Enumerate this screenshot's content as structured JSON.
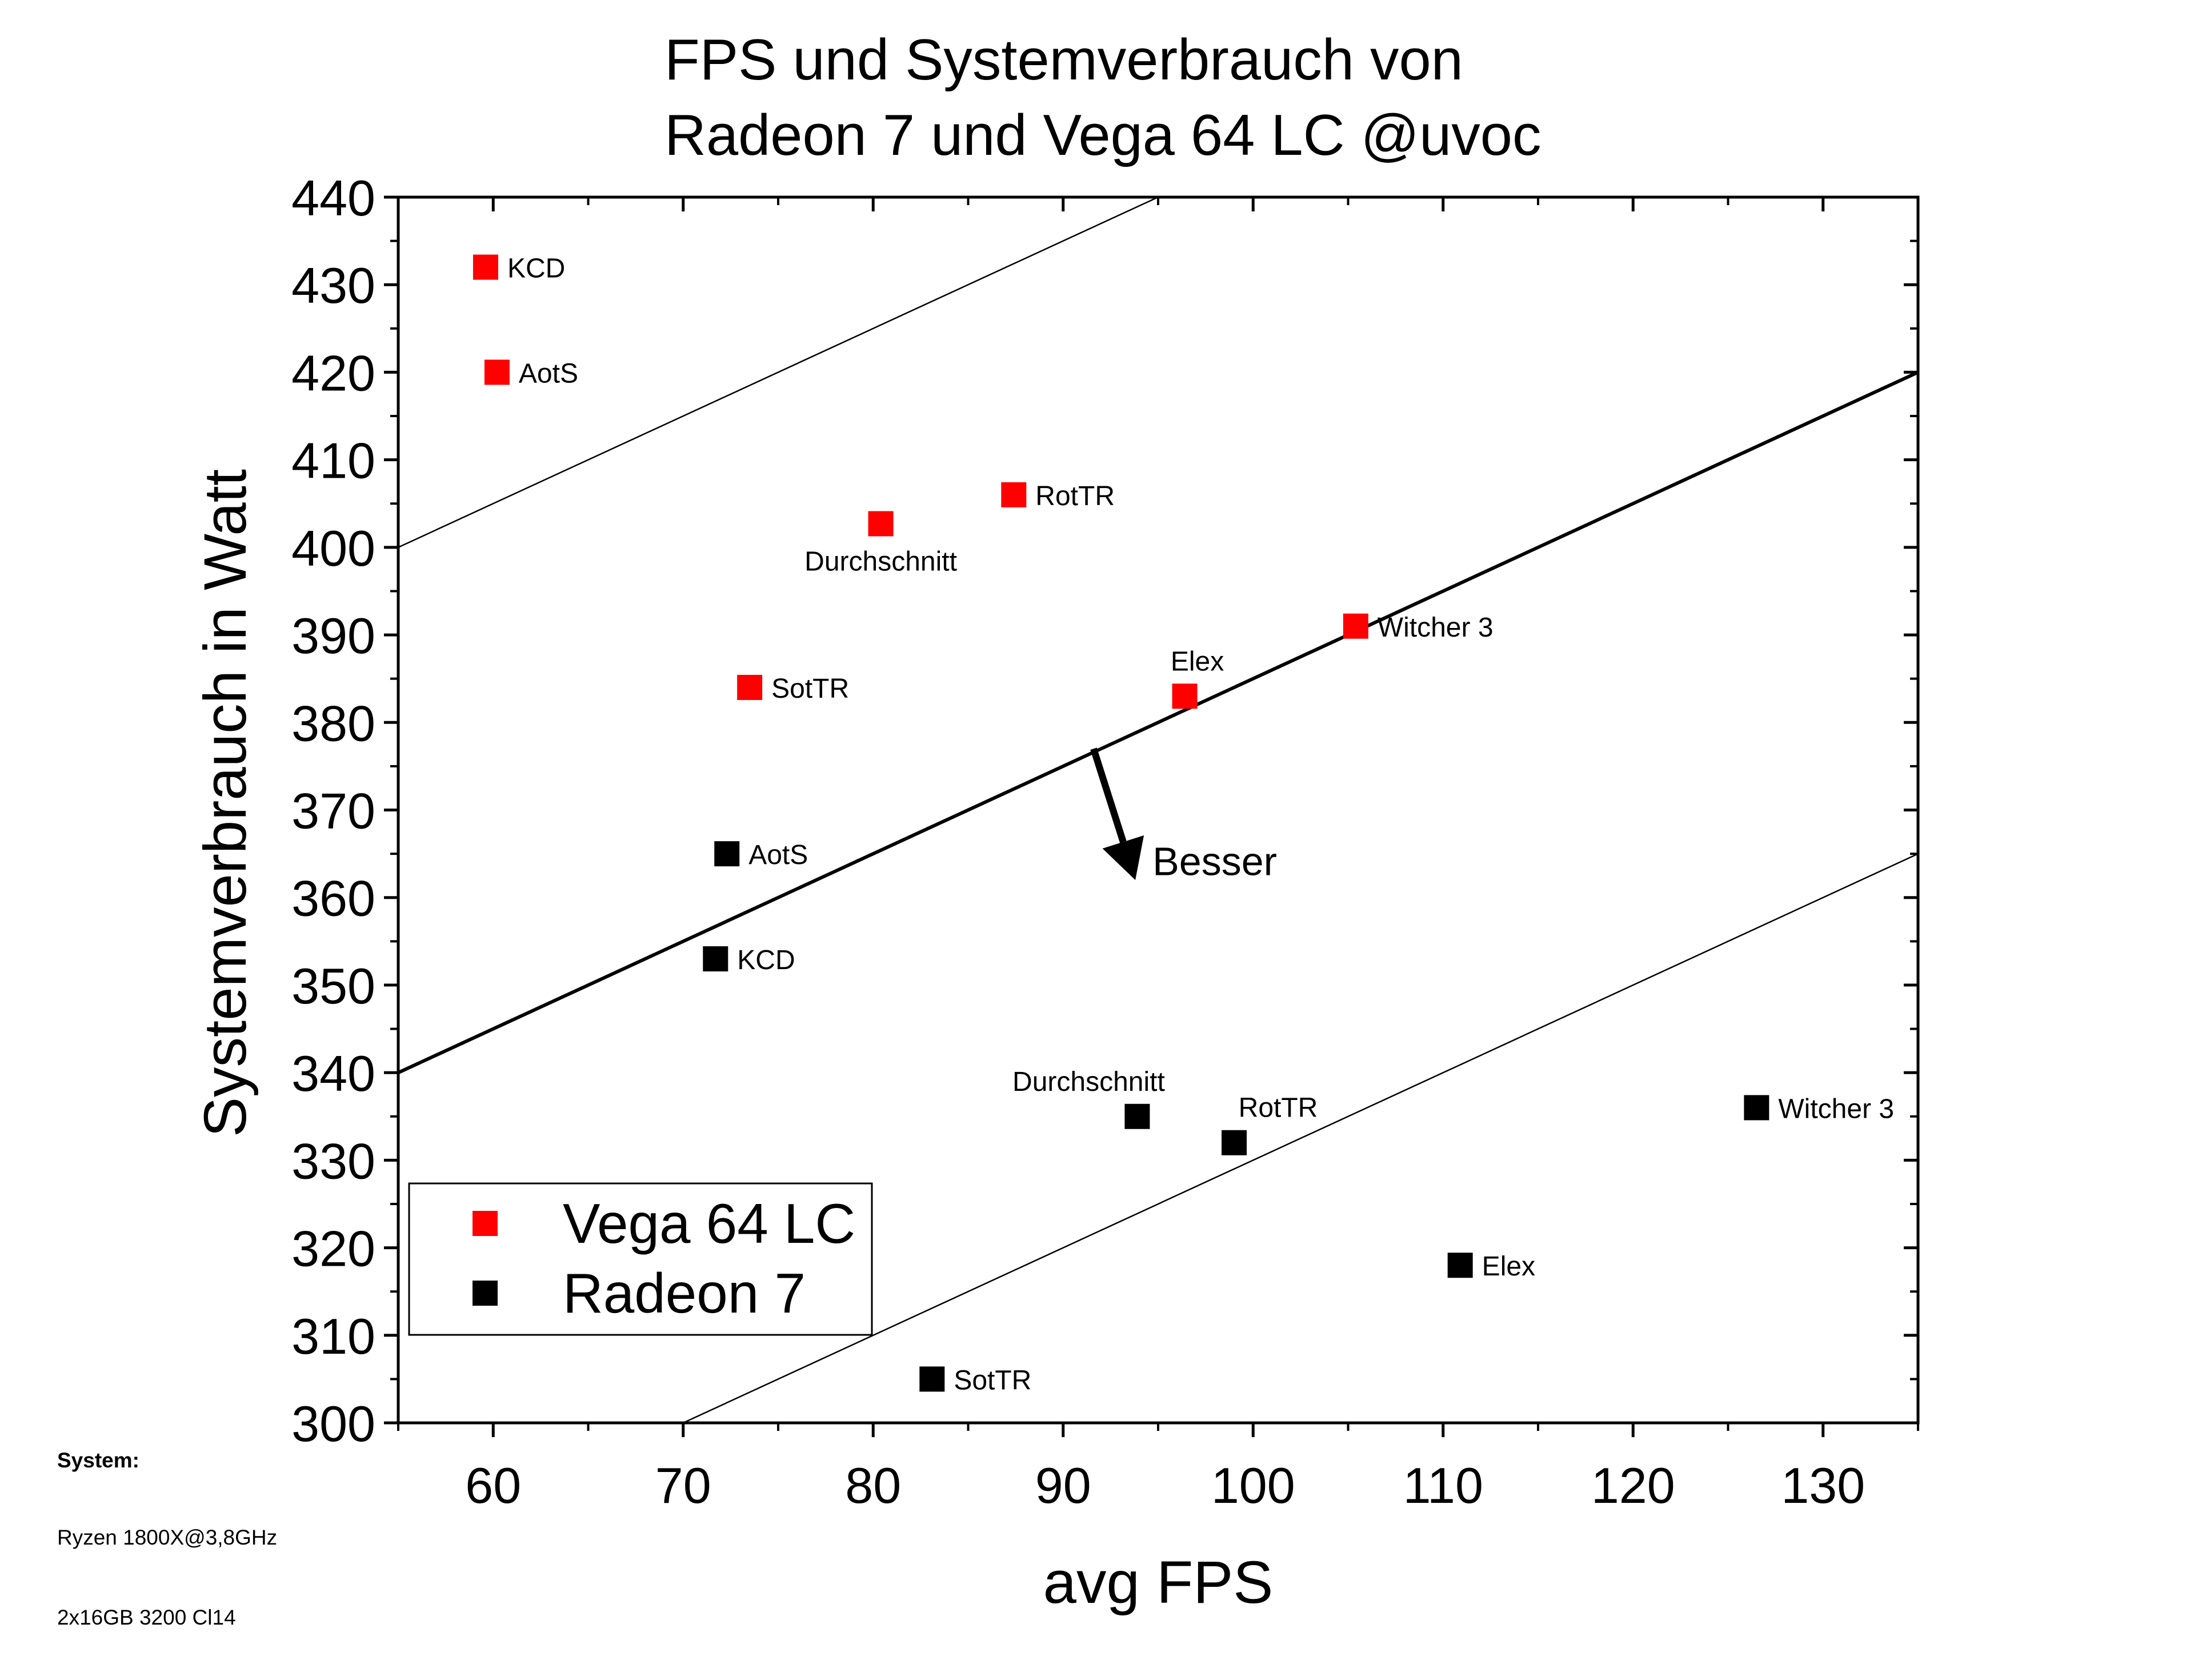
{
  "chart_data": {
    "type": "scatter",
    "title_lines": [
      "FPS und Systemverbrauch von",
      "Radeon 7 und Vega 64 LC @uvoc"
    ],
    "xlabel": "avg FPS",
    "ylabel": "Systemverbrauch in Watt",
    "xlim": [
      55,
      135
    ],
    "ylim": [
      300,
      440
    ],
    "xticks": [
      60,
      70,
      80,
      90,
      100,
      110,
      120,
      130
    ],
    "yticks": [
      300,
      310,
      320,
      330,
      340,
      350,
      360,
      370,
      380,
      390,
      400,
      410,
      420,
      430,
      440
    ],
    "grid": false,
    "legend_position": "bottom-left",
    "series": [
      {
        "name": "Vega 64 LC",
        "color": "#ff0000",
        "points": [
          {
            "label": "KCD",
            "x": 59.6,
            "y": 432,
            "label_pos": "right"
          },
          {
            "label": "AotS",
            "x": 60.2,
            "y": 420,
            "label_pos": "right"
          },
          {
            "label": "Durchschnitt",
            "x": 80.4,
            "y": 402.7,
            "label_pos": "below"
          },
          {
            "label": "RotTR",
            "x": 87.4,
            "y": 406,
            "label_pos": "right"
          },
          {
            "label": "SotTR",
            "x": 73.5,
            "y": 384,
            "label_pos": "right"
          },
          {
            "label": "Elex",
            "x": 96.4,
            "y": 383,
            "label_pos": "above"
          },
          {
            "label": "Witcher 3",
            "x": 105.4,
            "y": 391,
            "label_pos": "right"
          }
        ]
      },
      {
        "name": "Radeon 7",
        "color": "#000000",
        "points": [
          {
            "label": "AotS",
            "x": 72.3,
            "y": 365,
            "label_pos": "right"
          },
          {
            "label": "KCD",
            "x": 71.7,
            "y": 353,
            "label_pos": "right"
          },
          {
            "label": "Durchschnitt",
            "x": 93.9,
            "y": 335,
            "label_pos": "above"
          },
          {
            "label": "RotTR",
            "x": 99,
            "y": 332,
            "label_pos": "above"
          },
          {
            "label": "Witcher 3",
            "x": 126.5,
            "y": 336,
            "label_pos": "right"
          },
          {
            "label": "Elex",
            "x": 110.9,
            "y": 318,
            "label_pos": "right"
          },
          {
            "label": "SotTR",
            "x": 83.1,
            "y": 305,
            "label_pos": "right"
          }
        ]
      }
    ],
    "reference_lines": [
      {
        "name": "upper-guide",
        "x1": 55,
        "y1": 400,
        "x2": 95,
        "y2": 440,
        "weight": "thin"
      },
      {
        "name": "middle-guide",
        "x1": 55,
        "y1": 340,
        "x2": 135,
        "y2": 420,
        "weight": "bold"
      },
      {
        "name": "lower-guide",
        "x1": 70,
        "y1": 300,
        "x2": 135,
        "y2": 365,
        "weight": "thin"
      }
    ],
    "annotation": {
      "text": "Besser",
      "arrow_from": {
        "x": 91.6,
        "y": 377
      },
      "arrow_to": {
        "x": 93.8,
        "y": 362
      }
    }
  },
  "footer": {
    "system_label": "System:",
    "cpu": "Ryzen 1800X@3,8GHz",
    "ram": "2x16GB 3200 Cl14"
  }
}
